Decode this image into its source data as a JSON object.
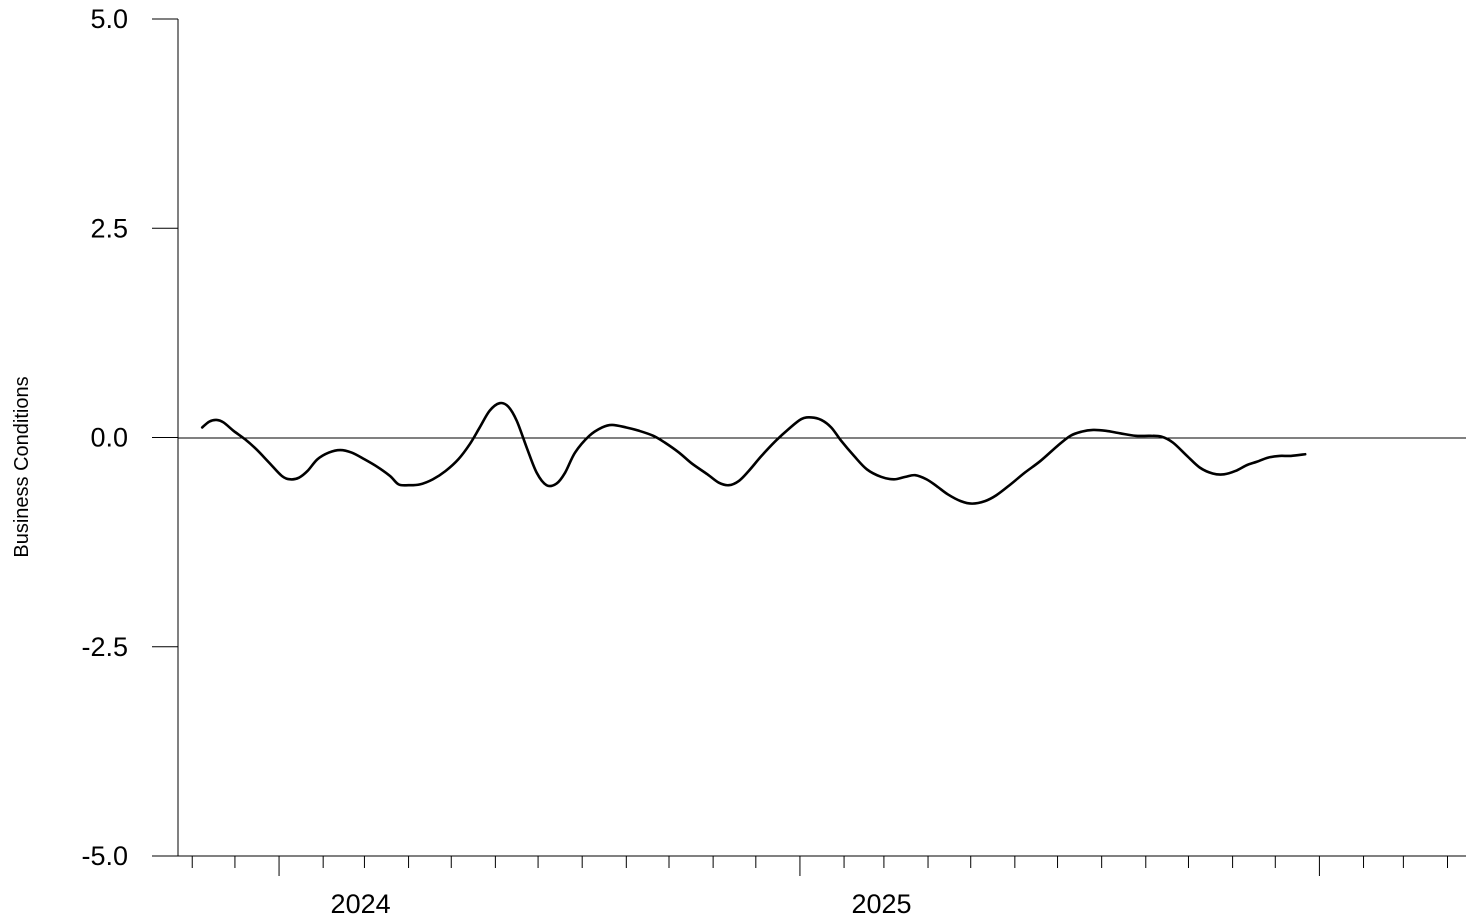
{
  "chart_data": {
    "type": "line",
    "title": "",
    "xlabel": "",
    "ylabel": "Business Conditions",
    "ylim": [
      -5.0,
      5.0
    ],
    "yticks": [
      {
        "value": 5.0,
        "label": "5.0"
      },
      {
        "value": 2.5,
        "label": "2.5"
      },
      {
        "value": 0.0,
        "label": "0.0"
      },
      {
        "value": -2.5,
        "label": "-2.5"
      },
      {
        "value": -5.0,
        "label": "-5.0"
      }
    ],
    "xlim": [
      "2023-10-22",
      "2026-04-14"
    ],
    "year_labels": [
      {
        "date": "2024-01-01",
        "label": "2024"
      },
      {
        "date": "2025-01-01",
        "label": "2025"
      }
    ],
    "reference_line": 0.0,
    "grid": false,
    "series": [
      {
        "color": "#000000",
        "points": [
          [
            "2023-11-08",
            0.12
          ],
          [
            "2023-11-13",
            0.19
          ],
          [
            "2023-11-18",
            0.21
          ],
          [
            "2023-11-23",
            0.18
          ],
          [
            "2023-11-30",
            0.08
          ],
          [
            "2023-12-08",
            -0.02
          ],
          [
            "2023-12-16",
            -0.14
          ],
          [
            "2023-12-25",
            -0.3
          ],
          [
            "2024-01-03",
            -0.46
          ],
          [
            "2024-01-09",
            -0.5
          ],
          [
            "2024-01-15",
            -0.48
          ],
          [
            "2024-01-21",
            -0.4
          ],
          [
            "2024-01-28",
            -0.26
          ],
          [
            "2024-02-05",
            -0.18
          ],
          [
            "2024-02-13",
            -0.15
          ],
          [
            "2024-02-21",
            -0.18
          ],
          [
            "2024-03-01",
            -0.26
          ],
          [
            "2024-03-10",
            -0.35
          ],
          [
            "2024-03-19",
            -0.46
          ],
          [
            "2024-03-25",
            -0.56
          ],
          [
            "2024-04-01",
            -0.57
          ],
          [
            "2024-04-09",
            -0.56
          ],
          [
            "2024-04-18",
            -0.5
          ],
          [
            "2024-04-27",
            -0.4
          ],
          [
            "2024-05-06",
            -0.26
          ],
          [
            "2024-05-14",
            -0.08
          ],
          [
            "2024-05-21",
            0.12
          ],
          [
            "2024-05-28",
            0.32
          ],
          [
            "2024-06-04",
            0.41
          ],
          [
            "2024-06-10",
            0.37
          ],
          [
            "2024-06-16",
            0.2
          ],
          [
            "2024-06-23",
            -0.12
          ],
          [
            "2024-06-30",
            -0.42
          ],
          [
            "2024-07-07",
            -0.57
          ],
          [
            "2024-07-14",
            -0.55
          ],
          [
            "2024-07-20",
            -0.42
          ],
          [
            "2024-07-27",
            -0.18
          ],
          [
            "2024-08-06",
            0.02
          ],
          [
            "2024-08-15",
            0.12
          ],
          [
            "2024-08-22",
            0.15
          ],
          [
            "2024-09-01",
            0.12
          ],
          [
            "2024-09-10",
            0.08
          ],
          [
            "2024-09-20",
            0.02
          ],
          [
            "2024-09-28",
            -0.06
          ],
          [
            "2024-10-08",
            -0.18
          ],
          [
            "2024-10-17",
            -0.31
          ],
          [
            "2024-10-28",
            -0.44
          ],
          [
            "2024-11-05",
            -0.54
          ],
          [
            "2024-11-12",
            -0.57
          ],
          [
            "2024-11-19",
            -0.52
          ],
          [
            "2024-11-26",
            -0.4
          ],
          [
            "2024-12-05",
            -0.22
          ],
          [
            "2024-12-15",
            -0.04
          ],
          [
            "2024-12-24",
            0.1
          ],
          [
            "2025-01-02",
            0.22
          ],
          [
            "2025-01-09",
            0.24
          ],
          [
            "2025-01-16",
            0.21
          ],
          [
            "2025-01-23",
            0.12
          ],
          [
            "2025-01-30",
            -0.04
          ],
          [
            "2025-02-08",
            -0.22
          ],
          [
            "2025-02-17",
            -0.38
          ],
          [
            "2025-02-27",
            -0.47
          ],
          [
            "2025-03-08",
            -0.5
          ],
          [
            "2025-03-16",
            -0.47
          ],
          [
            "2025-03-23",
            -0.45
          ],
          [
            "2025-03-31",
            -0.5
          ],
          [
            "2025-04-07",
            -0.58
          ],
          [
            "2025-04-15",
            -0.68
          ],
          [
            "2025-04-24",
            -0.76
          ],
          [
            "2025-05-02",
            -0.79
          ],
          [
            "2025-05-11",
            -0.76
          ],
          [
            "2025-05-19",
            -0.69
          ],
          [
            "2025-05-29",
            -0.56
          ],
          [
            "2025-06-08",
            -0.42
          ],
          [
            "2025-06-19",
            -0.28
          ],
          [
            "2025-07-01",
            -0.1
          ],
          [
            "2025-07-10",
            0.02
          ],
          [
            "2025-07-18",
            0.07
          ],
          [
            "2025-07-26",
            0.09
          ],
          [
            "2025-08-04",
            0.08
          ],
          [
            "2025-08-14",
            0.05
          ],
          [
            "2025-08-25",
            0.02
          ],
          [
            "2025-09-04",
            0.02
          ],
          [
            "2025-09-12",
            0.01
          ],
          [
            "2025-09-20",
            -0.06
          ],
          [
            "2025-09-30",
            -0.22
          ],
          [
            "2025-10-09",
            -0.36
          ],
          [
            "2025-10-18",
            -0.43
          ],
          [
            "2025-10-26",
            -0.44
          ],
          [
            "2025-11-03",
            -0.4
          ],
          [
            "2025-11-11",
            -0.33
          ],
          [
            "2025-11-18",
            -0.29
          ],
          [
            "2025-11-26",
            -0.24
          ],
          [
            "2025-12-04",
            -0.22
          ],
          [
            "2025-12-12",
            -0.22
          ],
          [
            "2025-12-22",
            -0.2
          ]
        ]
      }
    ]
  }
}
